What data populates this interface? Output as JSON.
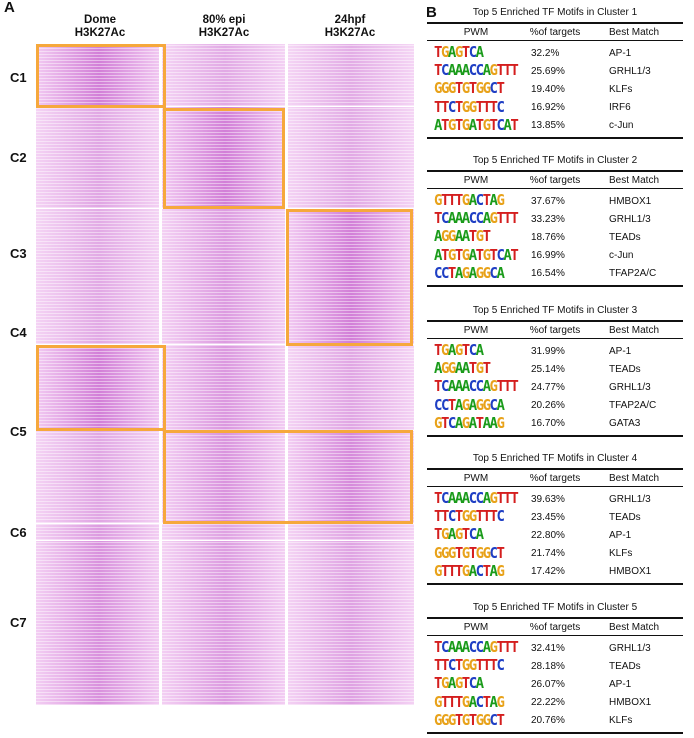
{
  "panel_a": {
    "label": "A",
    "columns": [
      {
        "line1": "Dome",
        "line2": "H3K27Ac"
      },
      {
        "line1": "80% epi",
        "line2": "H3K27Ac"
      },
      {
        "line1": "24hpf",
        "line2": "H3K27Ac"
      }
    ],
    "clusters": [
      "C1",
      "C2",
      "C3",
      "C4",
      "C5",
      "C6",
      "C7"
    ],
    "colors": {
      "heat_base": "#f5d7f3",
      "heat_strong": "#d57fd8",
      "highlight": "#f6a83c"
    }
  },
  "panel_b": {
    "label": "B",
    "headers": {
      "pwm": "PWM",
      "pct": "%of targets",
      "match": "Best Match"
    },
    "tables": [
      {
        "title": "Top 5 Enriched TF Motifs in Cluster 1",
        "rows": [
          {
            "motif": "TGAGTCA",
            "pct": "32.2%",
            "match": "AP-1"
          },
          {
            "motif": "TCAAACCAGTTT",
            "pct": "25.69%",
            "match": "GRHL1/3"
          },
          {
            "motif": "GGGTGTGGCT",
            "pct": "19.40%",
            "match": "KLFs"
          },
          {
            "motif": "TTCTGGTTTC",
            "pct": "16.92%",
            "match": "IRF6"
          },
          {
            "motif": "ATGTGATGTCAT",
            "pct": "13.85%",
            "match": "c-Jun"
          }
        ]
      },
      {
        "title": "Top 5 Enriched TF Motifs in Cluster 2",
        "rows": [
          {
            "motif": "GTTTGACTAG",
            "pct": "37.67%",
            "match": "HMBOX1"
          },
          {
            "motif": "TCAAACCAGTTT",
            "pct": "33.23%",
            "match": "GRHL1/3"
          },
          {
            "motif": "AGGAATGT",
            "pct": "18.76%",
            "match": "TEADs"
          },
          {
            "motif": "ATGTGATGTCAT",
            "pct": "16.99%",
            "match": "c-Jun"
          },
          {
            "motif": "CCTAGAGGCA",
            "pct": "16.54%",
            "match": "TFAP2A/C"
          }
        ]
      },
      {
        "title": "Top 5 Enriched TF Motifs in Cluster 3",
        "rows": [
          {
            "motif": "TGAGTCA",
            "pct": "31.99%",
            "match": "AP-1"
          },
          {
            "motif": "AGGAATGT",
            "pct": "25.14%",
            "match": "TEADs"
          },
          {
            "motif": "TCAAACCAGTTT",
            "pct": "24.77%",
            "match": "GRHL1/3"
          },
          {
            "motif": "CCTAGAGGCA",
            "pct": "20.26%",
            "match": "TFAP2A/C"
          },
          {
            "motif": "GTCAGATAAG",
            "pct": "16.70%",
            "match": "GATA3"
          }
        ]
      },
      {
        "title": "Top 5 Enriched TF Motifs in Cluster 4",
        "rows": [
          {
            "motif": "TCAAACCAGTTT",
            "pct": "39.63%",
            "match": "GRHL1/3"
          },
          {
            "motif": "TTCTGGTTTC",
            "pct": "23.45%",
            "match": "TEADs"
          },
          {
            "motif": "TGAGTCA",
            "pct": "22.80%",
            "match": "AP-1"
          },
          {
            "motif": "GGGTGTGGCT",
            "pct": "21.74%",
            "match": "KLFs"
          },
          {
            "motif": "GTTTGACTAG",
            "pct": "17.42%",
            "match": "HMBOX1"
          }
        ]
      },
      {
        "title": "Top 5 Enriched TF Motifs in Cluster 5",
        "rows": [
          {
            "motif": "TCAAACCAGTTT",
            "pct": "32.41%",
            "match": "GRHL1/3"
          },
          {
            "motif": "TTCTGGTTTC",
            "pct": "28.18%",
            "match": "TEADs"
          },
          {
            "motif": "TGAGTCA",
            "pct": "26.07%",
            "match": "AP-1"
          },
          {
            "motif": "GTTTGACTAG",
            "pct": "22.22%",
            "match": "HMBOX1"
          },
          {
            "motif": "GGGTGTGGCT",
            "pct": "20.76%",
            "match": "KLFs"
          }
        ]
      }
    ],
    "colors": {
      "A": "#1a9b1a",
      "C": "#1f3fc4",
      "G": "#e8a21a",
      "T": "#d41e1e"
    }
  }
}
